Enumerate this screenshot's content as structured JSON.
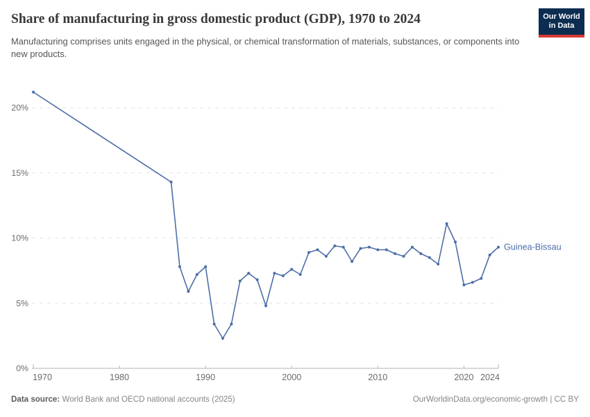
{
  "header": {
    "title": "Share of manufacturing in gross domestic product (GDP), 1970 to 2024",
    "subtitle": "Manufacturing comprises units engaged in the physical, or chemical transformation of materials, substances, or components into new products.",
    "logo_line1": "Our World",
    "logo_line2": "in Data"
  },
  "footer": {
    "source_label": "Data source:",
    "source_text": "World Bank and OECD national accounts (2025)",
    "attribution": "OurWorldinData.org/economic-growth | CC BY"
  },
  "colors": {
    "line": "#4c6ea8",
    "entity_label": "#4c6ea8",
    "grid": "#e2e2e2",
    "axis": "#b3b3b3",
    "tick_label": "#6b6b6b",
    "logo_bg": "#0c2c50",
    "logo_accent": "#d93a34"
  },
  "chart_data": {
    "type": "line",
    "title": "Share of manufacturing in gross domestic product (GDP), 1970 to 2024",
    "entity": "Guinea-Bissau",
    "unit": "%",
    "xlim": [
      1970,
      2024
    ],
    "ylim": [
      0,
      20
    ],
    "grid": "horizontal-dashed",
    "legend_position": "line-end-label",
    "xticks": [
      1970,
      1980,
      1990,
      2000,
      2010,
      2020,
      2024
    ],
    "yticks": [
      0,
      5,
      10,
      15,
      20
    ],
    "ytick_suffix": "%",
    "note": "No data points between 1970 and 1986; straight connecting segment",
    "x": [
      1970,
      1986,
      1987,
      1988,
      1989,
      1990,
      1991,
      1992,
      1993,
      1994,
      1995,
      1996,
      1997,
      1998,
      1999,
      2000,
      2001,
      2002,
      2003,
      2004,
      2005,
      2006,
      2007,
      2008,
      2009,
      2010,
      2011,
      2012,
      2013,
      2014,
      2015,
      2016,
      2017,
      2018,
      2019,
      2020,
      2021,
      2022,
      2023,
      2024
    ],
    "series": [
      {
        "name": "Guinea-Bissau",
        "values": [
          21.2,
          14.3,
          7.8,
          5.9,
          7.2,
          7.8,
          3.4,
          2.3,
          3.4,
          6.7,
          7.3,
          6.8,
          4.8,
          7.3,
          7.1,
          7.6,
          7.2,
          8.9,
          9.1,
          8.6,
          9.4,
          9.3,
          8.2,
          9.2,
          9.3,
          9.1,
          9.1,
          8.8,
          8.6,
          9.3,
          8.8,
          8.5,
          8.0,
          11.1,
          9.7,
          6.4,
          6.6,
          6.9,
          8.7,
          9.3
        ]
      }
    ]
  }
}
